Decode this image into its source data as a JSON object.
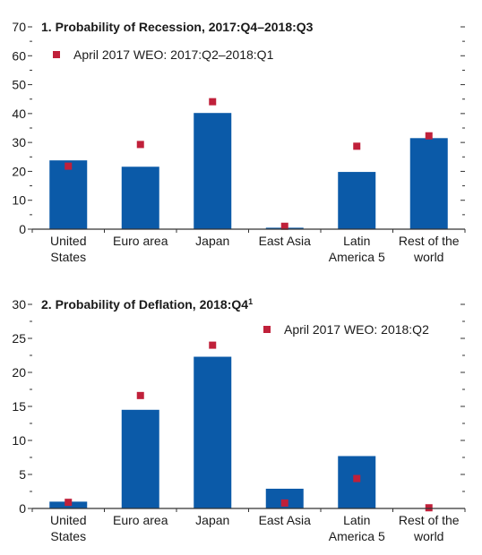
{
  "colors": {
    "bar": "#0b5aa8",
    "marker": "#c0203a",
    "axis": "#333333"
  },
  "chart_data": [
    {
      "type": "bar",
      "title": "1. Probability of Recession, 2017:Q4–2018:Q3",
      "categories": [
        [
          "United",
          "States"
        ],
        [
          "Euro area"
        ],
        [
          "Japan"
        ],
        [
          "East Asia"
        ],
        [
          "Latin",
          "America 5"
        ],
        [
          "Rest of the",
          "world"
        ]
      ],
      "series": [
        {
          "values": [
            23.8,
            21.6,
            40.2,
            0.5,
            19.8,
            31.5
          ]
        },
        {
          "name": "April 2017 WEO: 2017:Q2–2018:Q1",
          "type": "scatter",
          "values": [
            21.8,
            29.3,
            44.1,
            1.0,
            28.7,
            32.3
          ]
        }
      ],
      "ylim": [
        0,
        70
      ],
      "yticks": [
        0,
        10,
        20,
        30,
        40,
        50,
        60,
        70
      ],
      "legend": "top-left"
    },
    {
      "type": "bar",
      "title": "2. Probability of Deflation, 2018:Q4",
      "title_sup": "1",
      "categories": [
        [
          "United",
          "States"
        ],
        [
          "Euro area"
        ],
        [
          "Japan"
        ],
        [
          "East Asia"
        ],
        [
          "Latin",
          "America 5"
        ],
        [
          "Rest of the",
          "world"
        ]
      ],
      "series": [
        {
          "values": [
            1.0,
            14.5,
            22.3,
            2.9,
            7.7,
            0.0
          ]
        },
        {
          "name": "April 2017 WEO: 2018:Q2",
          "type": "scatter",
          "values": [
            0.9,
            16.6,
            24.0,
            0.8,
            4.4,
            0.1
          ]
        }
      ],
      "ylim": [
        0,
        30
      ],
      "yticks": [
        0,
        5,
        10,
        15,
        20,
        25,
        30
      ],
      "legend": "top-center"
    }
  ]
}
